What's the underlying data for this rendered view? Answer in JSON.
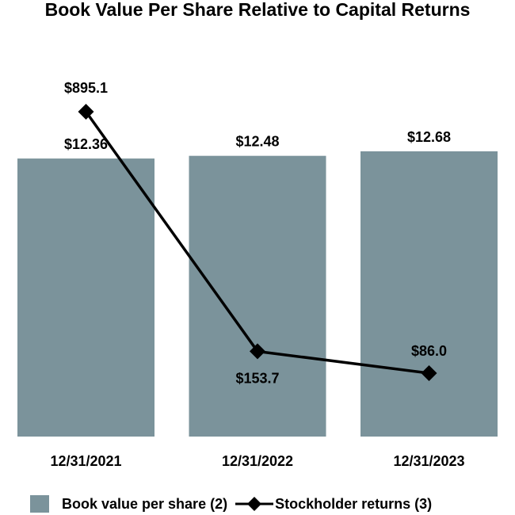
{
  "chart_data": {
    "type": "bar",
    "title": "Book Value Per Share Relative to Capital Returns",
    "categories": [
      "12/31/2021",
      "12/31/2022",
      "12/31/2023"
    ],
    "series": [
      {
        "name": "Book value per share (2)",
        "type": "bar",
        "values": [
          12.36,
          12.48,
          12.68
        ],
        "labels": [
          "$12.36",
          "$12.48",
          "$12.68"
        ],
        "color": "#7b939b"
      },
      {
        "name": "Stockholder returns (3)",
        "type": "line",
        "marker": "diamond",
        "values": [
          895.1,
          153.7,
          86.0
        ],
        "labels": [
          "$895.1",
          "$153.7",
          "$86.0"
        ],
        "color": "#000000"
      }
    ],
    "bar_axis": {
      "ylim": [
        0,
        12.68
      ],
      "visible": false
    },
    "line_axis": {
      "ylim": [
        -110,
        895.1
      ],
      "visible": false
    },
    "grid": false,
    "legend_position": "bottom"
  }
}
